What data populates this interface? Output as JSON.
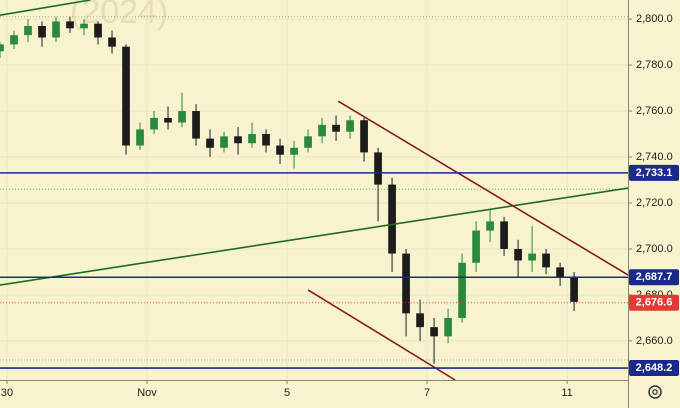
{
  "chart_data": {
    "type": "candlestick",
    "watermark": "(2024)",
    "up_color": "#2a8a3c",
    "down_color": "#1c1c1c",
    "background": "#f7f3cf",
    "grid": true,
    "xlim": [
      -0.1,
      8.87
    ],
    "xticks": [
      {
        "value": 0,
        "label": "30"
      },
      {
        "value": 2,
        "label": "Nov"
      },
      {
        "value": 4,
        "label": "5"
      },
      {
        "value": 6,
        "label": "7"
      },
      {
        "value": 8,
        "label": "11"
      }
    ],
    "ylim": [
      2643,
      2808.3
    ],
    "yticks": [
      {
        "value": 2660,
        "label": "2,660.0"
      },
      {
        "value": 2680,
        "label": "2,680.0"
      },
      {
        "value": 2700,
        "label": "2,700.0"
      },
      {
        "value": 2720,
        "label": "2,720.0"
      },
      {
        "value": 2740,
        "label": "2,740.0"
      },
      {
        "value": 2760,
        "label": "2,760.0"
      },
      {
        "value": 2780,
        "label": "2,780.0"
      },
      {
        "value": 2800,
        "label": "2,800.0"
      }
    ],
    "x": [
      -0.1,
      0.1,
      0.3,
      0.5,
      0.7,
      0.9,
      1.1,
      1.3,
      1.5,
      1.7,
      1.9,
      2.1,
      2.3,
      2.5,
      2.7,
      2.9,
      3.1,
      3.3,
      3.5,
      3.7,
      3.9,
      4.1,
      4.3,
      4.5,
      4.7,
      4.9,
      5.1,
      5.3,
      5.5,
      5.7,
      5.9,
      6.1,
      6.3,
      6.5,
      6.7,
      6.9,
      7.1,
      7.3,
      7.5,
      7.7,
      7.9,
      8.1
    ],
    "open": [
      2786,
      2789,
      2793,
      2797,
      2792,
      2799,
      2796,
      2798,
      2792,
      2788,
      2745,
      2752,
      2757,
      2755,
      2760,
      2748,
      2744,
      2749,
      2746,
      2750,
      2745,
      2741,
      2744,
      2749,
      2754,
      2751,
      2756,
      2742,
      2728,
      2698,
      2672,
      2666,
      2662,
      2670,
      2694,
      2708,
      2712,
      2700,
      2695,
      2698,
      2692,
      2688
    ],
    "high": [
      2790,
      2795,
      2800,
      2799,
      2801,
      2801,
      2800,
      2799,
      2795,
      2789,
      2755,
      2760,
      2762,
      2768,
      2763,
      2752,
      2751,
      2753,
      2755,
      2752,
      2748,
      2747,
      2752,
      2757,
      2758,
      2758,
      2757,
      2744,
      2731,
      2700,
      2678,
      2670,
      2674,
      2698,
      2712,
      2717,
      2714,
      2704,
      2710,
      2700,
      2694,
      2690
    ],
    "low": [
      2783,
      2787,
      2790,
      2788,
      2790,
      2794,
      2793,
      2789,
      2785,
      2741,
      2743,
      2750,
      2752,
      2753,
      2745,
      2740,
      2742,
      2741,
      2744,
      2742,
      2737,
      2735,
      2742,
      2746,
      2747,
      2748,
      2738,
      2712,
      2690,
      2662,
      2660,
      2650,
      2659,
      2668,
      2690,
      2703,
      2697,
      2688,
      2690,
      2689,
      2684,
      2673
    ],
    "close": [
      2789,
      2793,
      2797,
      2792,
      2799,
      2796,
      2798,
      2792,
      2788,
      2745,
      2752,
      2757,
      2755,
      2760,
      2748,
      2744,
      2749,
      2746,
      2750,
      2745,
      2741,
      2744,
      2749,
      2754,
      2751,
      2756,
      2742,
      2728,
      2698,
      2672,
      2666,
      2662,
      2670,
      2694,
      2708,
      2712,
      2700,
      2695,
      2698,
      2692,
      2688,
      2677
    ],
    "levels": [
      {
        "value": 2733.1,
        "label": "2,733.1",
        "color": "#1a2a8c",
        "style": "solid"
      },
      {
        "value": 2687.7,
        "label": "2,687.7",
        "color": "#1a2a8c",
        "style": "solid"
      },
      {
        "value": 2648.2,
        "label": "2,648.2",
        "color": "#1a2a8c",
        "style": "solid"
      },
      {
        "value": 2676.6,
        "label": "2,676.6",
        "color": "#e53935",
        "style": "dotted"
      }
    ],
    "guides": [
      {
        "value": 2726,
        "color": "#66bb6a"
      },
      {
        "value": 2801,
        "color": "#b0ab90"
      },
      {
        "value": 2651.7,
        "color": "#b0ab90"
      }
    ],
    "trendlines": [
      {
        "points": [
          [
            -0.1,
            2684.3
          ],
          [
            8.87,
            2726.5
          ]
        ],
        "color": "#1e6b1e"
      },
      {
        "points": [
          [
            -0.1,
            2801.7
          ],
          [
            1.19,
            2808.3
          ]
        ],
        "color": "#1e6b1e"
      },
      {
        "points": [
          [
            4.73,
            2764.3
          ],
          [
            8.87,
            2688.7
          ]
        ],
        "color": "#8b1a1a"
      },
      {
        "points": [
          [
            4.3,
            2682.2
          ],
          [
            6.4,
            2643
          ]
        ],
        "color": "#8b1a1a"
      }
    ]
  }
}
